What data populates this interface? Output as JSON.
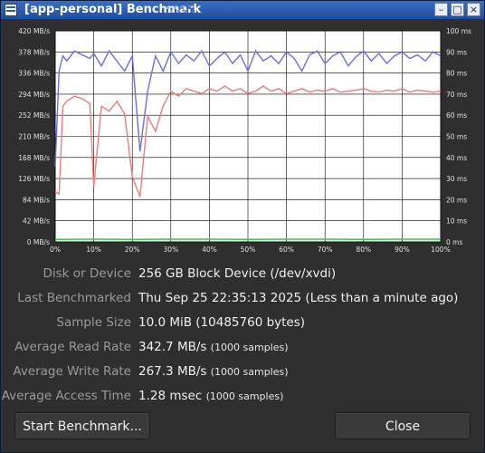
{
  "window": {
    "title": "[app-personal] Benchmark",
    "accent": "#2a5cb0"
  },
  "chart": {
    "left_ticks": [
      "420 MB/s",
      "378 MB/s",
      "336 MB/s",
      "294 MB/s",
      "252 MB/s",
      "210 MB/s",
      "168 MB/s",
      "126 MB/s",
      "84 MB/s",
      "42 MB/s",
      "0 MB/s"
    ],
    "right_ticks": [
      "100 ms",
      "90 ms",
      "80 ms",
      "70 ms",
      "60 ms",
      "50 ms",
      "40 ms",
      "30 ms",
      "20 ms",
      "10 ms",
      "0 ms"
    ],
    "x_ticks": [
      "0%",
      "10%",
      "20%",
      "30%",
      "40%",
      "50%",
      "60%",
      "70%",
      "80%",
      "90%",
      "100%"
    ]
  },
  "chart_data": {
    "type": "line",
    "x_range": [
      0,
      100
    ],
    "left_ylim": [
      0,
      420
    ],
    "right_ylim": [
      0,
      100
    ],
    "grid": true,
    "series": [
      {
        "color": "#6b6bf2",
        "axis": "left",
        "x": [
          0,
          1,
          2,
          3,
          5,
          7,
          9,
          10,
          12,
          14,
          16,
          18,
          20,
          22,
          24,
          26,
          28,
          30,
          32,
          34,
          36,
          38,
          40,
          42,
          44,
          46,
          48,
          50,
          52,
          54,
          56,
          58,
          60,
          62,
          64,
          66,
          68,
          70,
          72,
          74,
          76,
          78,
          80,
          82,
          84,
          86,
          88,
          90,
          92,
          94,
          96,
          98,
          100
        ],
        "values": [
          150,
          340,
          370,
          360,
          380,
          372,
          365,
          375,
          350,
          380,
          360,
          340,
          370,
          180,
          300,
          370,
          340,
          378,
          355,
          372,
          360,
          380,
          350,
          365,
          378,
          355,
          372,
          340,
          380,
          360,
          370,
          355,
          378,
          365,
          340,
          372,
          380,
          355,
          370,
          378,
          350,
          368,
          380,
          360,
          375,
          355,
          370,
          378,
          365,
          372,
          360,
          378,
          370
        ]
      },
      {
        "color": "#f07a7a",
        "axis": "left",
        "x": [
          0,
          1,
          2,
          3,
          5,
          7,
          9,
          10,
          12,
          14,
          16,
          18,
          20,
          22,
          24,
          26,
          28,
          30,
          32,
          34,
          36,
          38,
          40,
          42,
          44,
          46,
          48,
          50,
          52,
          54,
          56,
          58,
          60,
          62,
          64,
          66,
          68,
          70,
          72,
          74,
          76,
          78,
          80,
          82,
          84,
          86,
          88,
          90,
          92,
          94,
          96,
          98,
          100
        ],
        "values": [
          100,
          95,
          270,
          280,
          290,
          285,
          275,
          110,
          270,
          260,
          280,
          255,
          130,
          90,
          250,
          220,
          270,
          300,
          290,
          305,
          300,
          295,
          305,
          300,
          310,
          300,
          305,
          295,
          300,
          310,
          300,
          305,
          295,
          300,
          305,
          298,
          302,
          300,
          305,
          298,
          300,
          302,
          305,
          300,
          298,
          302,
          300,
          305,
          298,
          302,
          300,
          298,
          300
        ]
      },
      {
        "color": "#2ecc40",
        "axis": "right",
        "x": [
          0,
          10,
          20,
          30,
          40,
          50,
          60,
          70,
          80,
          90,
          100
        ],
        "values": [
          1.2,
          1.3,
          1.2,
          1.3,
          1.3,
          1.2,
          1.3,
          1.3,
          1.2,
          1.3,
          1.3
        ]
      }
    ]
  },
  "info": {
    "device_label": "Disk or Device",
    "device_value": "256 GB Block Device (/dev/xvdi)",
    "last_label": "Last Benchmarked",
    "last_value": "Thu Sep 25 22:35:13 2025 (Less than a minute ago)",
    "sample_label": "Sample Size",
    "sample_value": "10.0 MiB (10485760 bytes)",
    "read_label": "Average Read Rate",
    "read_value": "342.7 MB/s",
    "read_samples": "(1000 samples)",
    "write_label": "Average Write Rate",
    "write_value": "267.3 MB/s",
    "write_samples": "(1000 samples)",
    "access_label": "Average Access Time",
    "access_value": "1.28 msec",
    "access_samples": "(1000 samples)"
  },
  "buttons": {
    "start": "Start Benchmark...",
    "close": "Close"
  }
}
